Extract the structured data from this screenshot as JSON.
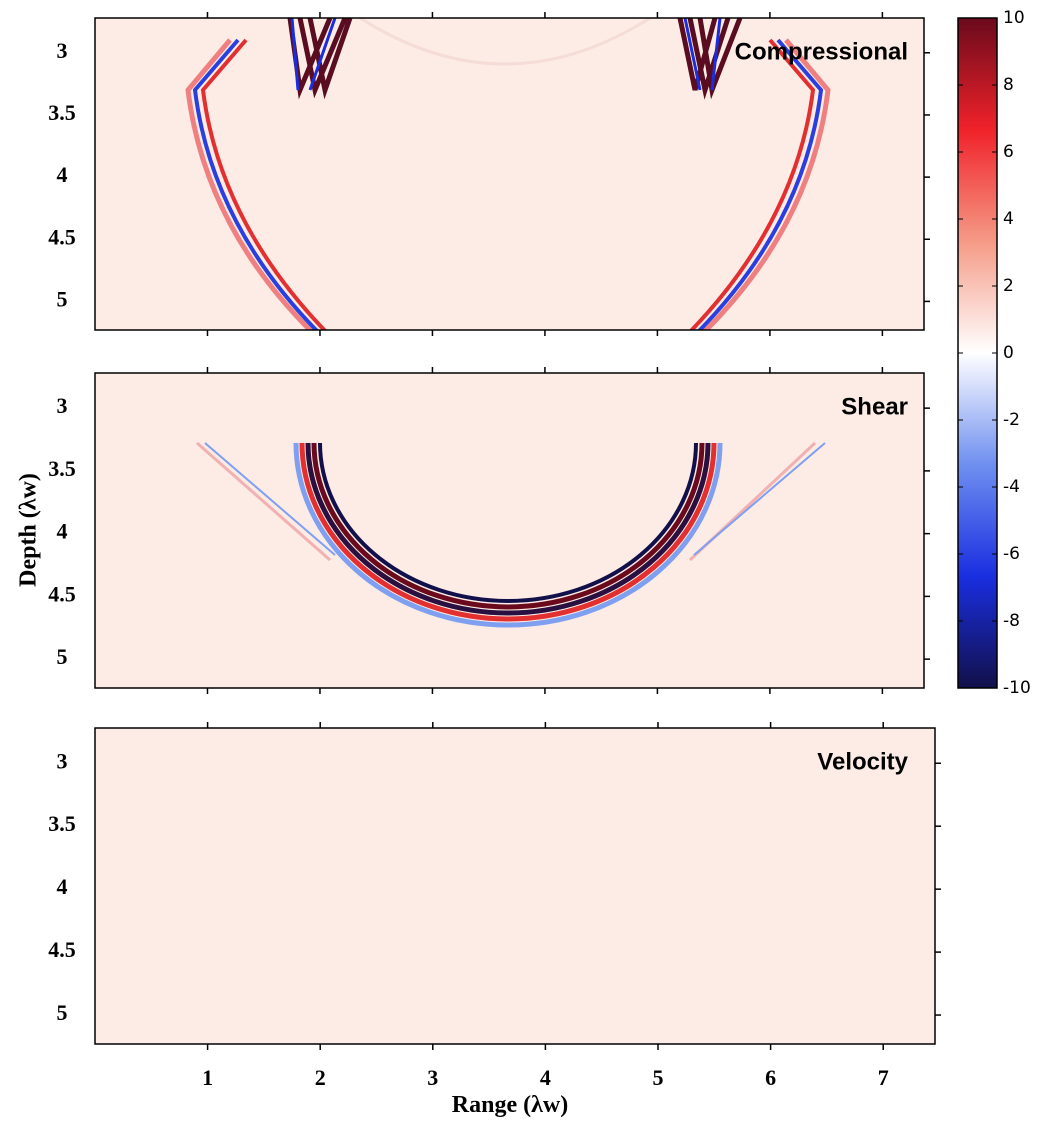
{
  "chart_data": [
    {
      "type": "heatmap",
      "title": "Compressional",
      "xlim": [
        0,
        7.37
      ],
      "xticks": [
        1,
        2,
        3,
        4,
        5,
        6,
        7
      ],
      "ylim": [
        2.72,
        5.23
      ],
      "yticks": [
        3,
        3.5,
        4,
        4.5,
        5
      ]
    },
    {
      "type": "heatmap",
      "title": "Shear",
      "ylabel": "Depth (λw)",
      "xlim": [
        0,
        7.37
      ],
      "xticks": [
        1,
        2,
        3,
        4,
        5,
        6,
        7
      ],
      "ylim": [
        2.72,
        5.23
      ],
      "yticks": [
        3,
        3.5,
        4,
        4.5,
        5
      ]
    },
    {
      "type": "heatmap",
      "title": "Velocity",
      "xlabel": "Range (λw)",
      "xlim": [
        0,
        7.46
      ],
      "xticks": [
        1,
        2,
        3,
        4,
        5,
        6,
        7
      ],
      "ylim": [
        2.72,
        5.23
      ],
      "yticks": [
        3,
        3.5,
        4,
        4.5,
        5
      ]
    }
  ],
  "colorbar": {
    "lim": [
      -10,
      10
    ],
    "ticks": [
      10,
      8,
      6,
      4,
      2,
      0,
      -2,
      -4,
      -6,
      -8,
      -10
    ],
    "colors": [
      "#12104a",
      "#1a2ee0",
      "#6f8ff0",
      "#ffffff",
      "#f59a86",
      "#f0222a",
      "#6a0a1c"
    ]
  }
}
